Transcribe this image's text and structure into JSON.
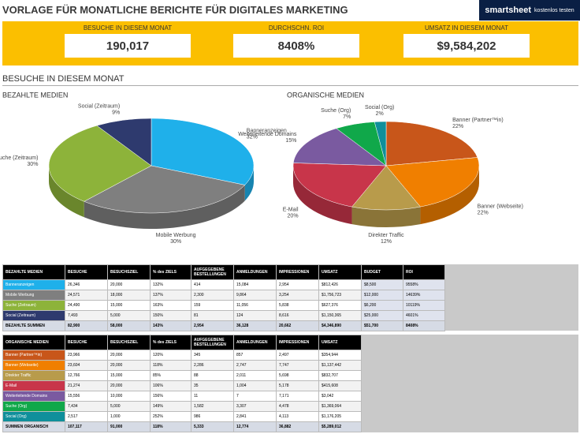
{
  "header": {
    "title": "VORLAGE FÜR MONATLICHE BERICHTE FÜR DIGITALES MARKETING",
    "logo_brand": "smartsheet",
    "logo_cta": "kostenlos testen"
  },
  "kpis": [
    {
      "label": "BESUCHE IN DIESEM MONAT",
      "value": "190,017"
    },
    {
      "label": "DURCHSCHN. ROI",
      "value": "8408%"
    },
    {
      "label": "UMSATZ IN DIESEM MONAT",
      "value": "$9,584,202"
    }
  ],
  "section_title": "BESUCHE IN DIESEM MONAT",
  "chart_data": [
    {
      "type": "pie",
      "title": "BEZAHLTE MEDIEN",
      "categories": [
        "Banneranzeigen",
        "Mobile Werbung",
        "Suche (Zeitraum)",
        "Social (Zeitraum)"
      ],
      "values": [
        32,
        30,
        30,
        9
      ],
      "value_labels": [
        "32%",
        "30%",
        "30%",
        "9%"
      ],
      "colors": [
        "#1fb0ea",
        "#7f7f7f",
        "#8db33a",
        "#2e3a6e"
      ]
    },
    {
      "type": "pie",
      "title": "ORGANISCHE MEDIEN",
      "categories": [
        "Banner (Partner™in)",
        "Banner (Webseite)",
        "Direkter Traffic",
        "E-Mail",
        "Weiterleitende Domains",
        "Suche (Org)",
        "Social (Org)"
      ],
      "values": [
        22,
        22,
        12,
        20,
        15,
        7,
        2
      ],
      "value_labels": [
        "22%",
        "22%",
        "12%",
        "20%",
        "15%",
        "7%",
        "2%"
      ],
      "colors": [
        "#c8561a",
        "#f07f00",
        "#b89b4b",
        "#c8354a",
        "#7a5aa0",
        "#10a84a",
        "#0f8f9b"
      ]
    }
  ],
  "tables": [
    {
      "headers": [
        "BEZAHLTE MEDIEN",
        "BESUCHE",
        "BESUCHSZIEL",
        "% des ZIELS",
        "AUFGEGEBENE BESTELLUNGEN",
        "ANMELDUNGEN",
        "IMPRESSIONEN",
        "UMSATZ",
        "BUDGET",
        "ROI"
      ],
      "rows": [
        [
          "Banneranzeigen",
          "26,346",
          "20,000",
          "132%",
          "414",
          "15,084",
          "2,954",
          "$812,426",
          "$8,500",
          "9558%"
        ],
        [
          "Mobile Werbung",
          "24,571",
          "18,000",
          "137%",
          "2,300",
          "9,864",
          "3,254",
          "$1,756,723",
          "$12,000",
          "14639%"
        ],
        [
          "Suche (Zeitraum)",
          "24,490",
          "15,000",
          "163%",
          "159",
          "11,056",
          "5,838",
          "$627,376",
          "$6,200",
          "10119%"
        ],
        [
          "Social (Zeitraum)",
          "7,493",
          "5,000",
          "150%",
          "81",
          "124",
          "8,616",
          "$1,150,365",
          "$25,000",
          "4601%"
        ],
        [
          "BEZAHLTE SUMMEN",
          "82,900",
          "58,000",
          "143%",
          "2,954",
          "36,128",
          "20,662",
          "$4,346,890",
          "$51,700",
          "8408%"
        ]
      ]
    },
    {
      "headers": [
        "ORGANISCHE MEDIEN",
        "BESUCHE",
        "BESUCHSZIEL",
        "% des ZIELS",
        "AUFGEGEBENE BESTELLUNGEN",
        "ANMELDUNGEN",
        "IMPRESSIONEN",
        "UMSATZ"
      ],
      "rows": [
        [
          "Banner (Partner™in)",
          "23,966",
          "20,000",
          "120%",
          "345",
          "857",
          "2,497",
          "$354,944"
        ],
        [
          "Banner (Webseite)",
          "23,604",
          "20,000",
          "118%",
          "2,286",
          "2,747",
          "7,747",
          "$1,137,442"
        ],
        [
          "Direkter Traffic",
          "12,766",
          "15,000",
          "85%",
          "88",
          "2,011",
          "5,698",
          "$832,707"
        ],
        [
          "E-Mail",
          "21,274",
          "20,000",
          "106%",
          "35",
          "1,004",
          "5,178",
          "$415,608"
        ],
        [
          "Weiterleitende Domains",
          "15,556",
          "10,000",
          "156%",
          "11",
          "7",
          "7,171",
          "$3,042"
        ],
        [
          "Suche (Org)",
          "7,434",
          "5,000",
          "149%",
          "1,582",
          "3,307",
          "4,478",
          "$1,369,064"
        ],
        [
          "Social (Org)",
          "2,517",
          "1,000",
          "252%",
          "986",
          "2,841",
          "4,113",
          "$1,176,205"
        ],
        [
          "SUMMEN ORGANISCH",
          "107,117",
          "91,000",
          "118%",
          "5,333",
          "12,774",
          "36,882",
          "$5,289,012"
        ]
      ]
    }
  ]
}
